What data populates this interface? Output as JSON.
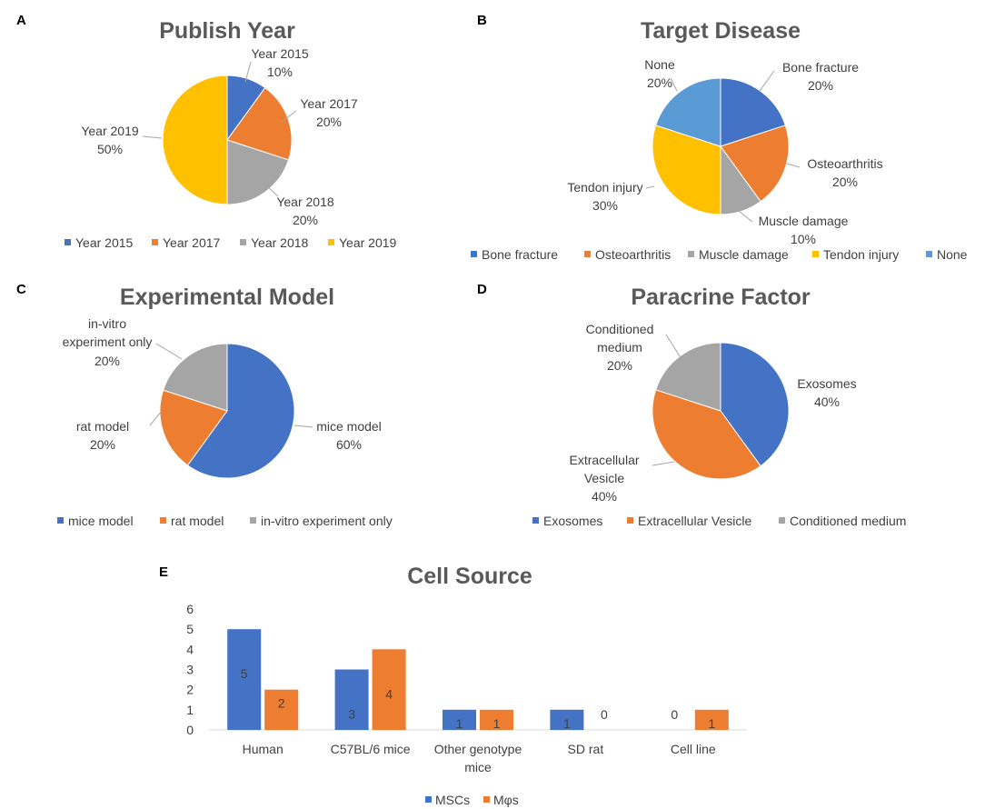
{
  "chart_data": [
    {
      "panel": "A",
      "type": "pie",
      "title": "Publish Year",
      "slices": [
        {
          "name": "Year 2015",
          "value": 10,
          "pct": "10%",
          "color": "#4472c4"
        },
        {
          "name": "Year 2017",
          "value": 20,
          "pct": "20%",
          "color": "#ed7d31"
        },
        {
          "name": "Year 2018",
          "value": 20,
          "pct": "20%",
          "color": "#a5a5a5"
        },
        {
          "name": "Year 2019",
          "value": 50,
          "pct": "50%",
          "color": "#ffc000"
        }
      ]
    },
    {
      "panel": "B",
      "type": "pie",
      "title": "Target Disease",
      "slices": [
        {
          "name": "Bone fracture",
          "value": 20,
          "pct": "20%",
          "color": "#4472c4"
        },
        {
          "name": "Osteoarthritis",
          "value": 20,
          "pct": "20%",
          "color": "#ed7d31"
        },
        {
          "name": "Muscle damage",
          "value": 10,
          "pct": "10%",
          "color": "#a5a5a5"
        },
        {
          "name": "Tendon injury",
          "value": 30,
          "pct": "30%",
          "color": "#ffc000"
        },
        {
          "name": "None",
          "value": 20,
          "pct": "20%",
          "color": "#5b9bd5"
        }
      ]
    },
    {
      "panel": "C",
      "type": "pie",
      "title": "Experimental Model",
      "slices": [
        {
          "name": "mice model",
          "value": 60,
          "pct": "60%",
          "color": "#4472c4"
        },
        {
          "name": "rat model",
          "value": 20,
          "pct": "20%",
          "color": "#ed7d31"
        },
        {
          "name": "in-vitro experiment only",
          "value": 20,
          "pct": "20%",
          "color": "#a5a5a5"
        }
      ]
    },
    {
      "panel": "D",
      "type": "pie",
      "title": "Paracrine Factor",
      "slices": [
        {
          "name": "Exosomes",
          "value": 40,
          "pct": "40%",
          "color": "#4472c4"
        },
        {
          "name": "Extracellular Vesicle",
          "value": 40,
          "pct": "40%",
          "color": "#ed7d31"
        },
        {
          "name": "Conditioned medium",
          "value": 20,
          "pct": "20%",
          "color": "#a5a5a5"
        }
      ]
    },
    {
      "panel": "E",
      "type": "bar",
      "title": "Cell Source",
      "categories": [
        "Human",
        "C57BL/6 mice",
        "Other genotype mice",
        "SD rat",
        "Cell line"
      ],
      "category_label_lines": [
        [
          "Human"
        ],
        [
          "C57BL/6 mice"
        ],
        [
          "Other genotype",
          "mice"
        ],
        [
          "SD rat"
        ],
        [
          "Cell line"
        ]
      ],
      "series": [
        {
          "name": "MSCs",
          "values": [
            5,
            3,
            1,
            1,
            0
          ],
          "color": "#4472c4"
        },
        {
          "name": "Mφs",
          "values": [
            2,
            4,
            1,
            0,
            1
          ],
          "color": "#ed7d31"
        }
      ],
      "ylim": [
        0,
        6
      ],
      "yticks": [
        0,
        1,
        2,
        3,
        4,
        5,
        6
      ],
      "xlabel": "",
      "ylabel": ""
    }
  ]
}
